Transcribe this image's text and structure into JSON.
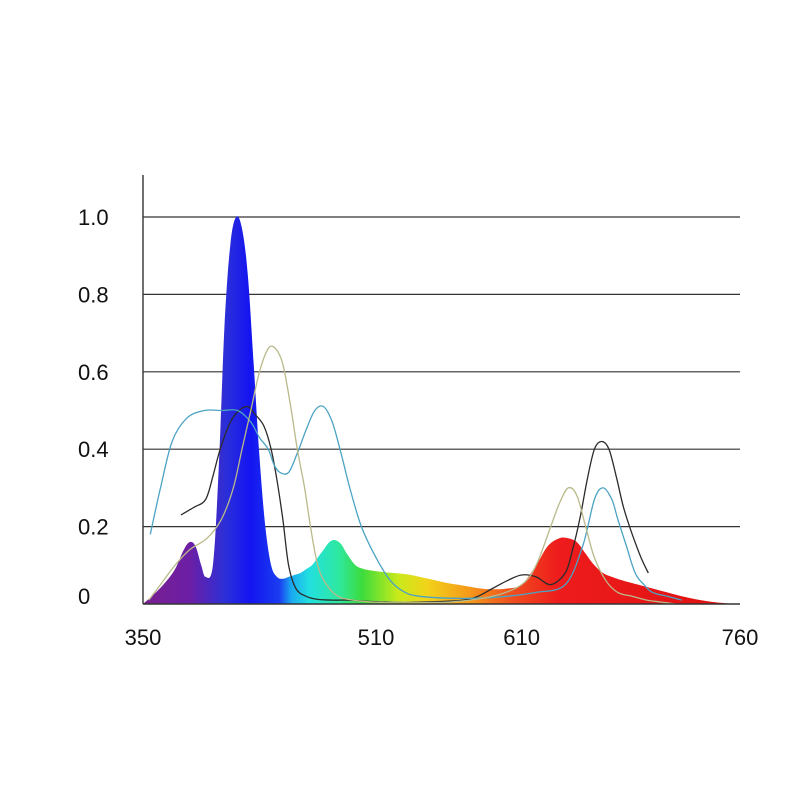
{
  "chart_data": {
    "type": "area",
    "title": "",
    "xlabel": "",
    "ylabel": "",
    "xlim": [
      350,
      760
    ],
    "ylim": [
      0,
      1.0
    ],
    "grid": true,
    "x_tick_labels": [
      "350",
      "510",
      "610",
      "760"
    ],
    "y_tick_labels": [
      "0",
      "0.2",
      "0.4",
      "0.6",
      "0.8",
      "1.0"
    ],
    "spectrum_fill": {
      "name": "",
      "colored_by_wavelength": true,
      "x": [
        350,
        356,
        364,
        372,
        378,
        382,
        386,
        390,
        393,
        398,
        402,
        406,
        410,
        414,
        418,
        422,
        426,
        430,
        434,
        438,
        442,
        446,
        450,
        454,
        458,
        462,
        466,
        470,
        474,
        478,
        482,
        486,
        490,
        496,
        502,
        510,
        516,
        522,
        528,
        534,
        540,
        546,
        552,
        558,
        566,
        574,
        582,
        590,
        600,
        610,
        620,
        628,
        636,
        642,
        648,
        654,
        660,
        666,
        672,
        680,
        690,
        700,
        710,
        720,
        730,
        740,
        750,
        757
      ],
      "values": [
        0.0,
        0.02,
        0.05,
        0.09,
        0.14,
        0.16,
        0.15,
        0.1,
        0.07,
        0.1,
        0.35,
        0.72,
        0.93,
        1.0,
        0.97,
        0.85,
        0.62,
        0.38,
        0.2,
        0.1,
        0.07,
        0.065,
        0.07,
        0.075,
        0.08,
        0.09,
        0.1,
        0.12,
        0.14,
        0.16,
        0.165,
        0.155,
        0.13,
        0.1,
        0.09,
        0.085,
        0.082,
        0.08,
        0.078,
        0.075,
        0.07,
        0.065,
        0.06,
        0.055,
        0.05,
        0.045,
        0.04,
        0.038,
        0.04,
        0.05,
        0.1,
        0.15,
        0.17,
        0.17,
        0.16,
        0.13,
        0.1,
        0.08,
        0.07,
        0.06,
        0.05,
        0.04,
        0.03,
        0.02,
        0.012,
        0.006,
        0.002,
        0.0
      ]
    },
    "series": [
      {
        "name": "",
        "color": "#2b2b2b",
        "x": [
          376,
          385,
          393,
          398,
          403,
          410,
          416,
          422,
          427,
          433,
          438,
          442,
          446,
          450,
          455,
          462,
          470,
          480,
          490,
          500,
          510,
          530,
          550,
          570,
          580,
          590,
          600,
          610,
          620,
          630,
          640,
          645,
          650,
          655,
          660,
          665,
          670,
          675,
          680,
          686,
          692,
          697
        ],
        "values": [
          0.23,
          0.25,
          0.27,
          0.33,
          0.4,
          0.47,
          0.5,
          0.51,
          0.49,
          0.46,
          0.4,
          0.32,
          0.22,
          0.1,
          0.04,
          0.02,
          0.012,
          0.01,
          0.01,
          0.008,
          0.006,
          0.005,
          0.006,
          0.01,
          0.02,
          0.04,
          0.06,
          0.075,
          0.07,
          0.05,
          0.08,
          0.14,
          0.22,
          0.32,
          0.4,
          0.42,
          0.4,
          0.33,
          0.25,
          0.18,
          0.12,
          0.08
        ]
      },
      {
        "name": "",
        "color": "#4ba3c3",
        "x": [
          355,
          362,
          370,
          380,
          392,
          404,
          415,
          424,
          430,
          436,
          440,
          444,
          450,
          456,
          462,
          468,
          474,
          480,
          486,
          492,
          500,
          510,
          520,
          530,
          540,
          560,
          580,
          600,
          620,
          640,
          652,
          660,
          666,
          672,
          676,
          682,
          688,
          694,
          700,
          710,
          720
        ],
        "values": [
          0.18,
          0.3,
          0.42,
          0.48,
          0.5,
          0.5,
          0.5,
          0.47,
          0.43,
          0.4,
          0.36,
          0.34,
          0.34,
          0.39,
          0.45,
          0.5,
          0.51,
          0.47,
          0.39,
          0.3,
          0.2,
          0.12,
          0.06,
          0.03,
          0.02,
          0.015,
          0.015,
          0.02,
          0.03,
          0.05,
          0.15,
          0.27,
          0.3,
          0.27,
          0.22,
          0.15,
          0.08,
          0.05,
          0.03,
          0.02,
          0.01
        ]
      },
      {
        "name": "",
        "color": "#b9b98a",
        "x": [
          354,
          362,
          372,
          382,
          394,
          404,
          412,
          418,
          424,
          430,
          436,
          441,
          446,
          451,
          456,
          461,
          465,
          470,
          476,
          484,
          494,
          510,
          530,
          560,
          590,
          610,
          620,
          630,
          636,
          642,
          648,
          654,
          660,
          668,
          676,
          686,
          696,
          706,
          716
        ],
        "values": [
          0.01,
          0.05,
          0.1,
          0.14,
          0.17,
          0.22,
          0.3,
          0.4,
          0.5,
          0.6,
          0.66,
          0.66,
          0.62,
          0.52,
          0.4,
          0.3,
          0.2,
          0.1,
          0.05,
          0.02,
          0.01,
          0.005,
          0.005,
          0.005,
          0.02,
          0.05,
          0.1,
          0.2,
          0.26,
          0.3,
          0.28,
          0.2,
          0.12,
          0.06,
          0.03,
          0.02,
          0.01,
          0.005,
          0.0
        ]
      }
    ]
  }
}
